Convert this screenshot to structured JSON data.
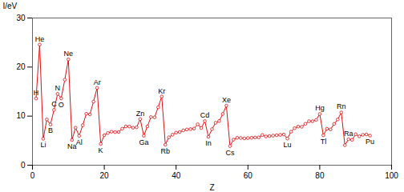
{
  "chart_data": {
    "type": "line",
    "xlabel": "Z",
    "ylabel": "I/eV",
    "color": "#e01010",
    "marker": "o",
    "grid": false,
    "xlim": [
      0,
      100
    ],
    "ylim": [
      0,
      30
    ],
    "xticks": [
      0,
      20,
      40,
      60,
      80,
      100
    ],
    "yticks": [
      0,
      10,
      20,
      30
    ],
    "x": [
      1,
      2,
      3,
      4,
      5,
      6,
      7,
      8,
      9,
      10,
      11,
      12,
      13,
      14,
      15,
      16,
      17,
      18,
      19,
      20,
      21,
      22,
      23,
      24,
      25,
      26,
      27,
      28,
      29,
      30,
      31,
      32,
      33,
      34,
      35,
      36,
      37,
      38,
      39,
      40,
      41,
      42,
      43,
      44,
      45,
      46,
      47,
      48,
      49,
      50,
      51,
      52,
      53,
      54,
      55,
      56,
      57,
      58,
      59,
      60,
      61,
      62,
      63,
      64,
      65,
      66,
      67,
      68,
      69,
      70,
      71,
      72,
      73,
      74,
      75,
      76,
      77,
      78,
      79,
      80,
      81,
      82,
      83,
      84,
      85,
      86,
      87,
      88,
      89,
      90,
      91,
      92,
      93,
      94
    ],
    "values": [
      13.598,
      24.587,
      5.392,
      9.323,
      8.298,
      11.26,
      14.534,
      13.618,
      17.423,
      21.565,
      5.139,
      7.646,
      5.986,
      8.152,
      10.487,
      10.36,
      12.968,
      15.76,
      4.341,
      6.113,
      6.561,
      6.828,
      6.746,
      6.767,
      7.434,
      7.902,
      7.881,
      7.64,
      7.726,
      9.394,
      5.999,
      7.9,
      9.815,
      9.752,
      11.814,
      13.999,
      4.177,
      5.695,
      6.217,
      6.634,
      6.759,
      7.092,
      7.28,
      7.361,
      7.459,
      8.337,
      7.576,
      8.994,
      5.786,
      7.344,
      8.641,
      9.01,
      10.451,
      12.13,
      3.894,
      5.212,
      5.577,
      5.539,
      5.473,
      5.525,
      5.582,
      5.644,
      5.67,
      6.15,
      5.864,
      5.939,
      6.022,
      6.108,
      6.184,
      6.254,
      5.426,
      6.825,
      7.55,
      7.864,
      7.833,
      8.438,
      8.967,
      8.959,
      9.226,
      10.438,
      6.108,
      7.417,
      7.289,
      8.417,
      9.32,
      10.748,
      4.073,
      5.279,
      5.17,
      6.307,
      5.89,
      6.194,
      6.266,
      6.026
    ],
    "annotations": [
      {
        "x": 1,
        "text": "H"
      },
      {
        "x": 2,
        "text": "He"
      },
      {
        "x": 3,
        "text": "Li"
      },
      {
        "x": 5,
        "text": "B"
      },
      {
        "x": 6,
        "text": "C"
      },
      {
        "x": 7,
        "text": "N"
      },
      {
        "x": 8,
        "text": "O"
      },
      {
        "x": 10,
        "text": "Ne"
      },
      {
        "x": 11,
        "text": "Na"
      },
      {
        "x": 13,
        "text": "Al"
      },
      {
        "x": 18,
        "text": "Ar"
      },
      {
        "x": 19,
        "text": "K"
      },
      {
        "x": 30,
        "text": "Zn"
      },
      {
        "x": 31,
        "text": "Ga"
      },
      {
        "x": 36,
        "text": "Kr"
      },
      {
        "x": 37,
        "text": "Rb"
      },
      {
        "x": 48,
        "text": "Cd"
      },
      {
        "x": 49,
        "text": "In"
      },
      {
        "x": 54,
        "text": "Xe"
      },
      {
        "x": 55,
        "text": "Cs"
      },
      {
        "x": 71,
        "text": "Lu"
      },
      {
        "x": 80,
        "text": "Hg"
      },
      {
        "x": 81,
        "text": "Tl"
      },
      {
        "x": 86,
        "text": "Rn"
      },
      {
        "x": 88,
        "text": "Ra"
      },
      {
        "x": 94,
        "text": "Pu"
      }
    ]
  }
}
